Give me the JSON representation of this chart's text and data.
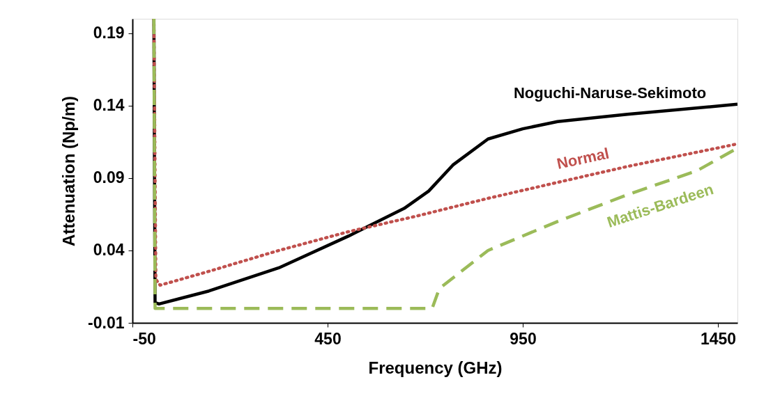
{
  "chart_data": {
    "type": "line",
    "xlabel": "Frequency (GHz)",
    "ylabel": "Attenuation (Np/m)",
    "xlim": [
      -50,
      1500
    ],
    "xticks": [
      -50,
      450,
      950,
      1450
    ],
    "ylim": [
      -0.01,
      0.2
    ],
    "yticks": [
      -0.01,
      0.04,
      0.09,
      0.14,
      0.19
    ],
    "grid": false,
    "series": [
      {
        "name": "Noguchi-Naruse-Sekimoto",
        "color": "#000000",
        "line_style": "solid",
        "x": [
          5,
          8,
          18,
          146,
          325,
          504,
          646,
          709,
          771,
          861,
          950,
          1039,
          1218,
          1500
        ],
        "values": [
          0.2,
          0.004,
          0.003,
          0.012,
          0.028,
          0.05,
          0.069,
          0.081,
          0.099,
          0.117,
          0.124,
          0.129,
          0.134,
          0.141
        ]
      },
      {
        "name": "Normal",
        "color": "#c0504d",
        "line_style": "dotted",
        "x": [
          5,
          10,
          21,
          146,
          325,
          504,
          682,
          861,
          1039,
          1218,
          1500
        ],
        "values": [
          0.2,
          0.02,
          0.016,
          0.0256,
          0.04,
          0.053,
          0.064,
          0.076,
          0.087,
          0.098,
          0.1136
        ]
      },
      {
        "name": "Mattis-Bardeen",
        "color": "#9bbb59",
        "line_style": "dashed",
        "x": [
          5,
          8,
          718,
          736,
          861,
          1039,
          1218,
          1396,
          1500
        ],
        "values": [
          0.2,
          0.0,
          0.0,
          0.0136,
          0.04,
          0.06,
          0.0785,
          0.095,
          0.1107
        ]
      }
    ]
  }
}
